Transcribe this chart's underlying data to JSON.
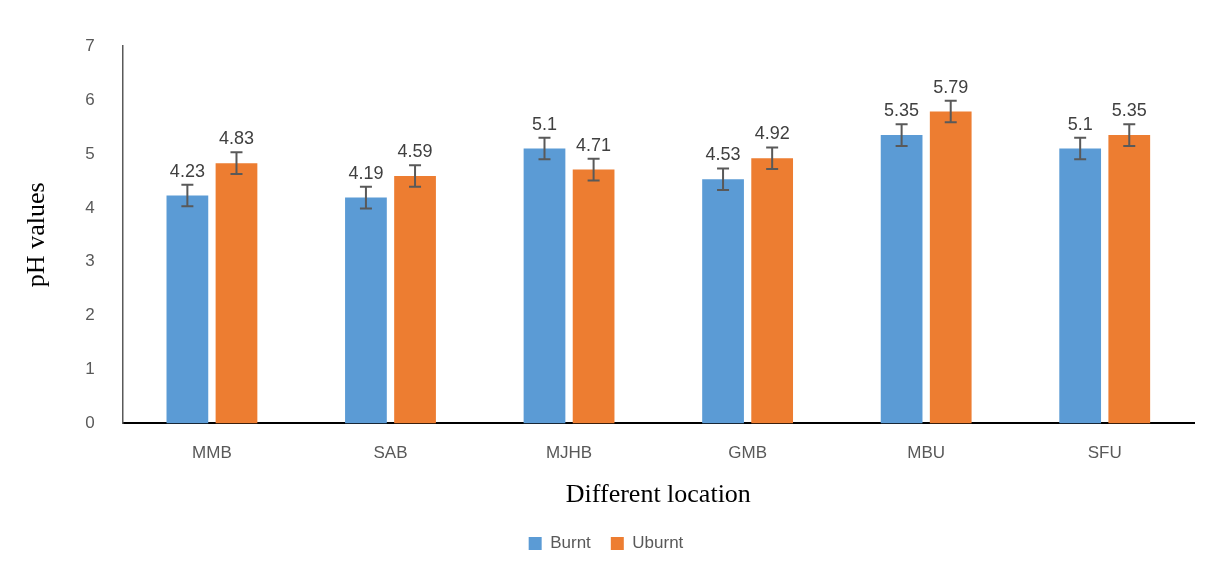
{
  "chart_data": {
    "type": "bar",
    "xlabel": "Different location",
    "ylabel": "pH values",
    "categories": [
      "MMB",
      "SAB",
      "MJHB",
      "GMB",
      "MBU",
      "SFU"
    ],
    "series": [
      {
        "name": "Burnt",
        "color": "#5b9bd5",
        "values": [
          4.23,
          4.19,
          5.1,
          4.53,
          5.35,
          5.1
        ],
        "errors": [
          0.2,
          0.2,
          0.2,
          0.2,
          0.2,
          0.2
        ]
      },
      {
        "name": "Uburnt",
        "color": "#ed7d31",
        "values": [
          4.83,
          4.59,
          4.71,
          4.92,
          5.79,
          5.35
        ],
        "errors": [
          0.2,
          0.2,
          0.2,
          0.2,
          0.2,
          0.2
        ]
      }
    ],
    "ylim": [
      0,
      7
    ],
    "yticks": [
      0,
      1,
      2,
      3,
      4,
      5,
      6,
      7
    ],
    "grid": false,
    "legend": "bottom",
    "data_labels": true
  }
}
